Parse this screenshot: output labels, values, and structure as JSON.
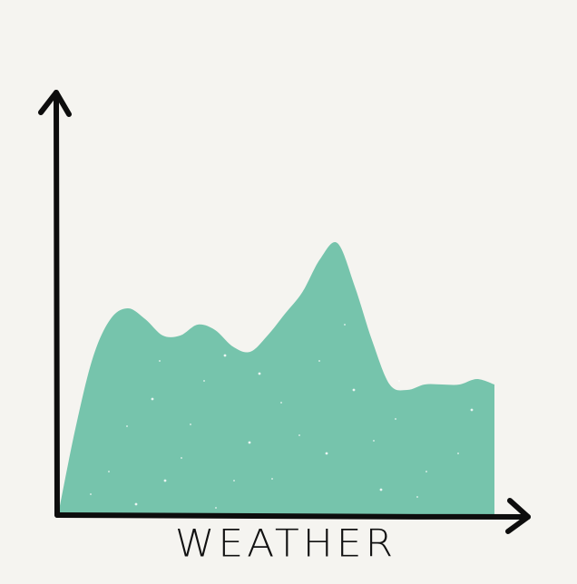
{
  "chart_data": {
    "type": "area",
    "title": "",
    "xlabel": "WEATHER",
    "ylabel": "",
    "x": [
      0,
      2,
      4,
      6,
      8,
      10,
      12,
      14,
      16,
      18,
      20,
      22,
      24,
      26,
      28,
      30,
      32,
      34,
      36,
      38,
      40,
      42,
      44,
      46,
      48,
      50
    ],
    "values": [
      0,
      16,
      29,
      36,
      38,
      36,
      33,
      33,
      35,
      34,
      31,
      30,
      33,
      37,
      41,
      47,
      50,
      42,
      32,
      24,
      23,
      24,
      24,
      24,
      25,
      24
    ],
    "xlim": [
      0,
      50
    ],
    "ylim": [
      0,
      80
    ],
    "grid": false,
    "legend": "none"
  },
  "colors": {
    "area_fill": "#76c4ac",
    "axis": "#0d0d0d",
    "background": "#f5f4f0",
    "speckle": "#ffffff"
  }
}
